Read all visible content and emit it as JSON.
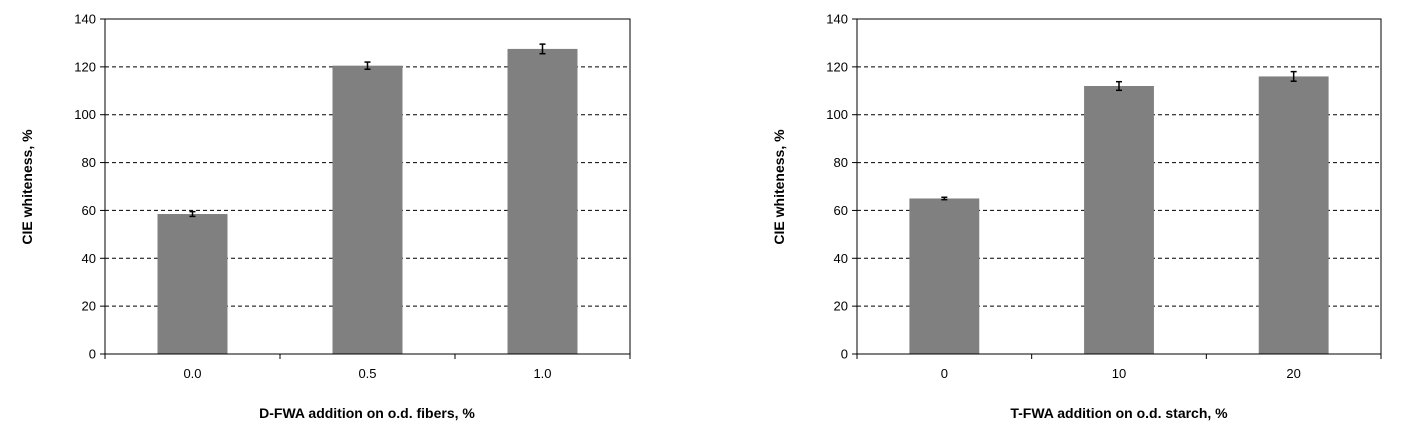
{
  "chart_data": [
    {
      "type": "bar",
      "categories": [
        "0.0",
        "0.5",
        "1.0"
      ],
      "values": [
        58.5,
        120.5,
        127.5
      ],
      "errors": [
        1.0,
        1.5,
        2.0
      ],
      "xlabel": "D-FWA addition on o.d. fibers, %",
      "ylabel": "CIE whiteness, %",
      "ylim": [
        0,
        140
      ],
      "yticks": [
        "0",
        "20",
        "40",
        "60",
        "80",
        "100",
        "120",
        "140"
      ],
      "bar_color": "#808080",
      "grid": "horizontal dashed"
    },
    {
      "type": "bar",
      "categories": [
        "0",
        "10",
        "20"
      ],
      "values": [
        65,
        112,
        116
      ],
      "errors": [
        0.5,
        1.8,
        2.0
      ],
      "xlabel": "T-FWA addition on o.d. starch, %",
      "ylabel": "CIE whiteness, %",
      "ylim": [
        0,
        140
      ],
      "yticks": [
        "0",
        "20",
        "40",
        "60",
        "80",
        "100",
        "120",
        "140"
      ],
      "bar_color": "#808080",
      "grid": "horizontal dashed"
    }
  ]
}
